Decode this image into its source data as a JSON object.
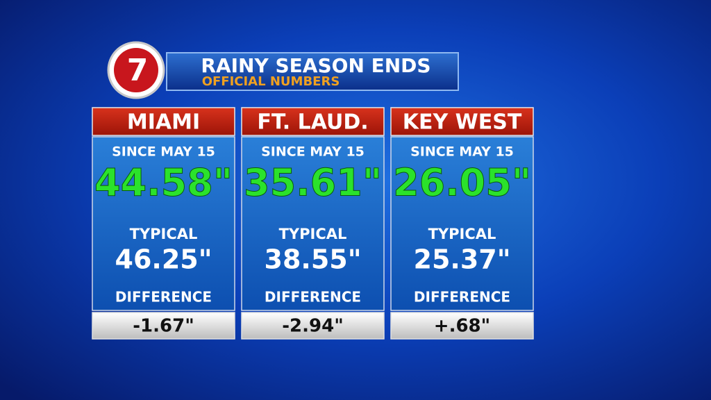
{
  "header": {
    "logo": "7",
    "title": "RAINY SEASON ENDS",
    "subtitle": "OFFICIAL NUMBERS"
  },
  "columns": [
    {
      "city": "MIAMI",
      "since_label": "SINCE MAY 15",
      "since_value": "44.58\"",
      "typical_label": "TYPICAL",
      "typical_value": "46.25\"",
      "difference_label": "DIFFERENCE",
      "difference_value": "-1.67\""
    },
    {
      "city": "FT. LAUD.",
      "since_label": "SINCE MAY 15",
      "since_value": "35.61\"",
      "typical_label": "TYPICAL",
      "typical_value": "38.55\"",
      "difference_label": "DIFFERENCE",
      "difference_value": "-2.94\""
    },
    {
      "city": "KEY WEST",
      "since_label": "SINCE MAY 15",
      "since_value": "26.05\"",
      "typical_label": "TYPICAL",
      "typical_value": "25.37\"",
      "difference_label": "DIFFERENCE",
      "difference_value": "+.68\""
    }
  ]
}
